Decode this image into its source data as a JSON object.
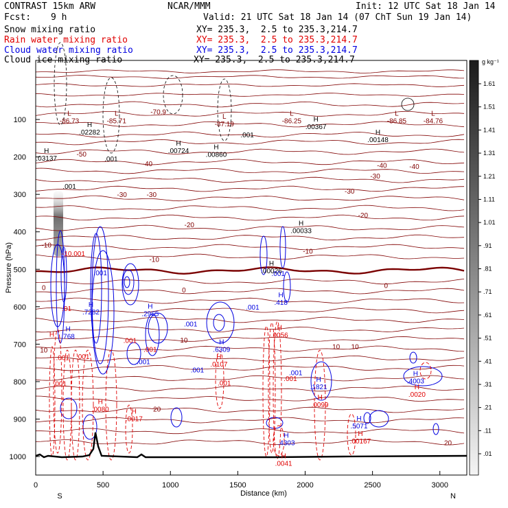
{
  "header": {
    "model": "CONTRAST 15km ARW",
    "center": "NCAR/MMM",
    "init": "Init: 12 UTC Sat 18 Jan 14",
    "fcst_label": "Fcst:",
    "fcst_value": "9 h",
    "valid": "Valid: 21 UTC Sat 18 Jan 14 (07 ChT Sun 19 Jan 14)"
  },
  "fields": [
    {
      "name": "Snow mixing ratio",
      "xy": "XY= 235.3,  2.5 to 235.3,214.7",
      "color": "#000000"
    },
    {
      "name": "Rain water mixing ratio",
      "xy": "XY= 235.3,  2.5 to 235.3,214.7",
      "color": "#e00000"
    },
    {
      "name": "Cloud water mixing ratio",
      "xy": "XY= 235.3,  2.5 to 235.3,214.7",
      "color": "#0000e0"
    },
    {
      "name": "Cloud ice mixing ratio",
      "xy": "XY= 235.3,  2.5 to 235.3,214.7",
      "color": "#000000"
    }
  ],
  "chart_data": {
    "type": "cross-section contour",
    "xlabel": "Distance (km)",
    "ylabel": "Pressure (hPa)",
    "x_ticks": [
      0,
      500,
      1000,
      1500,
      2000,
      2500,
      3000
    ],
    "x_tick_labels": [
      "0",
      "500",
      "1000",
      "1500",
      "2000",
      "2500",
      "3000"
    ],
    "y_ticks": [
      100,
      200,
      300,
      400,
      500,
      600,
      700,
      800,
      900,
      1000
    ],
    "y_tick_labels": [
      "100",
      "200",
      "300",
      "400",
      "500",
      "600",
      "700",
      "800",
      "900",
      "1000"
    ],
    "xlim": [
      0,
      3200
    ],
    "ylim": [
      1050,
      50
    ],
    "x_end_labels": {
      "left": "S",
      "right": "N"
    },
    "colorbar": {
      "unit": "g kg⁻¹",
      "ticks": [
        "1.61",
        "1.51",
        "1.41",
        "1.31",
        "1.21",
        "1.11",
        "1.01",
        ".91",
        ".81",
        ".71",
        ".61",
        ".51",
        ".41",
        ".31",
        ".21",
        ".11",
        ".01"
      ]
    },
    "temperature_labels": [
      {
        "x": 60,
        "p": 555,
        "t": "0"
      },
      {
        "x": 1100,
        "p": 562,
        "t": "0"
      },
      {
        "x": 2600,
        "p": 550,
        "t": "0"
      },
      {
        "x": 80,
        "p": 442,
        "t": "-10"
      },
      {
        "x": 880,
        "p": 480,
        "t": "-10"
      },
      {
        "x": 2020,
        "p": 458,
        "t": "-10"
      },
      {
        "x": 2330,
        "p": 298,
        "t": "-30"
      },
      {
        "x": 640,
        "p": 307,
        "t": "-30"
      },
      {
        "x": 860,
        "p": 307,
        "t": "-30"
      },
      {
        "x": 1140,
        "p": 388,
        "t": "-20"
      },
      {
        "x": 2430,
        "p": 362,
        "t": "-20"
      },
      {
        "x": 2520,
        "p": 258,
        "t": "-30"
      },
      {
        "x": 2810,
        "p": 232,
        "t": "-40"
      },
      {
        "x": 2570,
        "p": 229,
        "t": "-40"
      },
      {
        "x": 340,
        "p": 199,
        "t": "-50"
      },
      {
        "x": 830,
        "p": 225,
        "t": "-40"
      },
      {
        "x": 910,
        "p": 86,
        "t": "-70.9"
      },
      {
        "x": 2370,
        "p": 713,
        "t": "10"
      },
      {
        "x": 2230,
        "p": 713,
        "t": "10"
      },
      {
        "x": 60,
        "p": 722,
        "t": "10"
      },
      {
        "x": 900,
        "p": 880,
        "t": "20"
      },
      {
        "x": 3060,
        "p": 970,
        "t": "20"
      }
    ],
    "extrema": [
      {
        "kind": "L",
        "x": 250,
        "p": 90,
        "value": "-86.73",
        "color": "#800000"
      },
      {
        "kind": "L",
        "x": 600,
        "p": 90,
        "value": "-85.71",
        "color": "#800000"
      },
      {
        "kind": "L",
        "x": 1400,
        "p": 98,
        "value": "-87.19",
        "color": "#800000"
      },
      {
        "kind": "L",
        "x": 1900,
        "p": 90,
        "value": "-86.25",
        "color": "#800000"
      },
      {
        "kind": "L",
        "x": 2680,
        "p": 90,
        "value": "-86.85",
        "color": "#800000"
      },
      {
        "kind": "L",
        "x": 2950,
        "p": 90,
        "value": "-84.76",
        "color": "#800000"
      },
      {
        "kind": "H",
        "x": 400,
        "p": 120,
        "value": ".02282",
        "color": "#000000"
      },
      {
        "kind": "H",
        "x": 1060,
        "p": 170,
        "value": ".00724",
        "color": "#000000"
      },
      {
        "kind": "H",
        "x": 1340,
        "p": 180,
        "value": ".00860",
        "color": "#000000"
      },
      {
        "kind": "H",
        "x": 2080,
        "p": 105,
        "value": ".00367",
        "color": "#000000"
      },
      {
        "kind": "H",
        "x": 2540,
        "p": 140,
        "value": ".00148",
        "color": "#000000"
      },
      {
        "kind": "H",
        "x": 80,
        "p": 190,
        "value": ".03137",
        "color": "#000000"
      },
      {
        "kind": "H",
        "x": 1970,
        "p": 383,
        "value": ".00033",
        "color": "#000000"
      },
      {
        "kind": "H",
        "x": 1750,
        "p": 490,
        "value": ".00026",
        "color": "#000000"
      },
      {
        "kind": "H",
        "x": 240,
        "p": 665,
        "value": ".768",
        "color": "#0000e0"
      },
      {
        "kind": "H",
        "x": 410,
        "p": 600,
        "value": ".7282",
        "color": "#0000e0"
      },
      {
        "kind": "H",
        "x": 850,
        "p": 605,
        "value": ".2965",
        "color": "#0000e0"
      },
      {
        "kind": "H",
        "x": 1820,
        "p": 575,
        "value": ".418",
        "color": "#0000e0"
      },
      {
        "kind": "H",
        "x": 1380,
        "p": 700,
        "value": ".6309",
        "color": "#0000e0"
      },
      {
        "kind": "H",
        "x": 2100,
        "p": 800,
        "value": ".1821",
        "color": "#0000e0"
      },
      {
        "kind": "H",
        "x": 2400,
        "p": 905,
        "value": ".5071",
        "color": "#0000e0"
      },
      {
        "kind": "H",
        "x": 1860,
        "p": 950,
        "value": ".4303",
        "color": "#0000e0"
      },
      {
        "kind": "H",
        "x": 2820,
        "p": 785,
        "value": ".4003",
        "color": "#0000e0"
      },
      {
        "kind": "H",
        "x": 120,
        "p": 680,
        "value": "",
        "color": "#e00000"
      },
      {
        "kind": "H",
        "x": 1810,
        "p": 662,
        "value": ".0056",
        "color": "#e00000"
      },
      {
        "kind": "H",
        "x": 1360,
        "p": 740,
        "value": ".0107",
        "color": "#e00000"
      },
      {
        "kind": "H",
        "x": 480,
        "p": 860,
        "value": ".0080",
        "color": "#e00000"
      },
      {
        "kind": "H",
        "x": 730,
        "p": 885,
        "value": ".0017",
        "color": "#e00000"
      },
      {
        "kind": "H",
        "x": 2110,
        "p": 848,
        "value": ".0099",
        "color": "#e00000"
      },
      {
        "kind": "H",
        "x": 2410,
        "p": 945,
        "value": ".00167",
        "color": "#e00000"
      },
      {
        "kind": "H",
        "x": 1840,
        "p": 1005,
        "value": ".0041",
        "color": "#e00000"
      },
      {
        "kind": "H",
        "x": 2830,
        "p": 820,
        "value": ".0020",
        "color": "#e00000"
      }
    ],
    "annotations": [
      {
        "x": 280,
        "p": 465,
        "t": "-10.001",
        "color": "#e00000"
      },
      {
        "x": 480,
        "p": 516,
        "t": ".001",
        "color": "#0000e0"
      },
      {
        "x": 230,
        "p": 611,
        "t": ".01",
        "color": "#e00000"
      },
      {
        "x": 1610,
        "p": 608,
        "t": ".001",
        "color": "#0000e0"
      },
      {
        "x": 1150,
        "p": 653,
        "t": ".001",
        "color": "#0000e0"
      },
      {
        "x": 800,
        "p": 753,
        "t": ".001",
        "color": "#0000e0"
      },
      {
        "x": 1200,
        "p": 775,
        "t": ".001",
        "color": "#0000e0"
      },
      {
        "x": 1890,
        "p": 798,
        "t": ".001",
        "color": "#e00000"
      },
      {
        "x": 1930,
        "p": 783,
        "t": ".001",
        "color": "#0000e0"
      },
      {
        "x": 700,
        "p": 697,
        "t": ".001",
        "color": "#e00000"
      },
      {
        "x": 850,
        "p": 720,
        "t": ".001",
        "color": "#e00000"
      },
      {
        "x": 350,
        "p": 740,
        "t": ".001",
        "color": "#e00000"
      },
      {
        "x": 200,
        "p": 742,
        "t": ".001",
        "color": "#e00000"
      },
      {
        "x": 180,
        "p": 812,
        "t": ".001",
        "color": "#e00000"
      },
      {
        "x": 1400,
        "p": 810,
        "t": ".001",
        "color": "#e00000"
      },
      {
        "x": 560,
        "p": 212,
        "t": ".001",
        "color": "#000000"
      },
      {
        "x": 250,
        "p": 285,
        "t": ".001",
        "color": "#000000"
      },
      {
        "x": 1570,
        "p": 148,
        "t": ".001",
        "color": "#000000"
      },
      {
        "x": 1800,
        "p": 518,
        "t": ".001",
        "color": "#0000e0"
      },
      {
        "x": 1100,
        "p": 696,
        "t": "10",
        "color": "#800000"
      }
    ],
    "terrain": "near 1000 hPa, peak ~940 hPa near 440 km"
  }
}
